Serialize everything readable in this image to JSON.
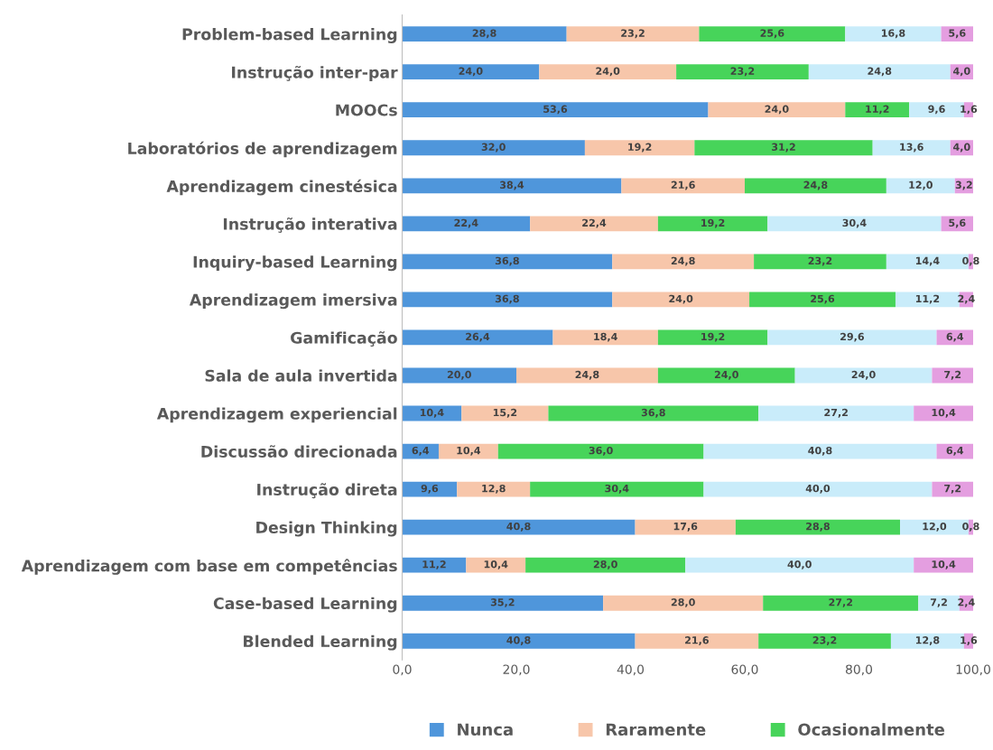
{
  "chart_data": {
    "type": "bar",
    "orientation": "horizontal",
    "stacked": true,
    "categories": [
      "Problem-based Learning",
      "Instrução inter-par",
      "MOOCs",
      "Laboratórios de aprendizagem",
      "Aprendizagem cinestésica",
      "Instrução interativa",
      "Inquiry-based Learning",
      "Aprendizagem imersiva",
      "Gamificação",
      "Sala de aula invertida",
      "Aprendizagem experiencial",
      "Discussão direcionada",
      "Instrução direta",
      "Design Thinking",
      "Aprendizagem com base em competências",
      "Case-based Learning",
      "Blended Learning"
    ],
    "series": [
      {
        "name": "Nunca",
        "color": "#4f96db",
        "values": [
          28.8,
          24.0,
          53.6,
          32.0,
          38.4,
          22.4,
          36.8,
          36.8,
          26.4,
          20.0,
          10.4,
          6.4,
          9.6,
          40.8,
          11.2,
          35.2,
          40.8
        ],
        "value_labels": [
          "28,8",
          "24,0",
          "53,6",
          "32,0",
          "38,4",
          "22,4",
          "36,8",
          "36,8",
          "26,4",
          "20,0",
          "10,4",
          "6,4",
          "9,6",
          "40,8",
          "11,2",
          "35,2",
          "40,8"
        ]
      },
      {
        "name": "Raramente",
        "color": "#f7c6aa",
        "values": [
          23.2,
          24.0,
          24.0,
          19.2,
          21.6,
          22.4,
          24.8,
          24.0,
          18.4,
          24.8,
          15.2,
          10.4,
          12.8,
          17.6,
          10.4,
          28.0,
          21.6
        ],
        "value_labels": [
          "23,2",
          "24,0",
          "24,0",
          "19,2",
          "21,6",
          "22,4",
          "24,8",
          "24,0",
          "18,4",
          "24,8",
          "15,2",
          "10,4",
          "12,8",
          "17,6",
          "10,4",
          "28,0",
          "21,6"
        ]
      },
      {
        "name": "Ocasionalmente",
        "color": "#47d45a",
        "values": [
          25.6,
          23.2,
          11.2,
          31.2,
          24.8,
          19.2,
          23.2,
          25.6,
          19.2,
          24.0,
          36.8,
          36.0,
          30.4,
          28.8,
          28.0,
          27.2,
          23.2
        ],
        "value_labels": [
          "25,6",
          "23,2",
          "11,2",
          "31,2",
          "24,8",
          "19,2",
          "23,2",
          "25,6",
          "19,2",
          "24,0",
          "36,8",
          "36,0",
          "30,4",
          "28,8",
          "28,0",
          "27,2",
          "23,2"
        ]
      },
      {
        "color": "#c9ecfa",
        "values": [
          16.8,
          24.8,
          9.6,
          13.6,
          12.0,
          30.4,
          14.4,
          11.2,
          29.6,
          24.0,
          27.2,
          40.8,
          40.0,
          12.0,
          40.0,
          7.2,
          12.8
        ],
        "value_labels": [
          "16,8",
          "24,8",
          "9,6",
          "13,6",
          "12,0",
          "30,4",
          "14,4",
          "11,2",
          "29,6",
          "24,0",
          "27,2",
          "40,8",
          "40,0",
          "12,0",
          "40,0",
          "7,2",
          "12,8"
        ]
      },
      {
        "color": "#e49ee0",
        "values": [
          5.6,
          4.0,
          1.6,
          4.0,
          3.2,
          5.6,
          0.8,
          2.4,
          6.4,
          7.2,
          10.4,
          6.4,
          7.2,
          0.8,
          10.4,
          2.4,
          1.6
        ],
        "value_labels": [
          "5,6",
          "4,0",
          "1,6",
          "4,0",
          "3,2",
          "5,6",
          "0,8",
          "2,4",
          "6,4",
          "7,2",
          "10,4",
          "6,4",
          "7,2",
          "0,8",
          "10,4",
          "2,4",
          "1,6"
        ]
      }
    ],
    "xlim": [
      0,
      100
    ],
    "xticks": [
      {
        "value": 0,
        "label": "0,0"
      },
      {
        "value": 20,
        "label": "20,0"
      },
      {
        "value": 40,
        "label": "40,0"
      },
      {
        "value": 60,
        "label": "60,0"
      },
      {
        "value": 80,
        "label": "80,0"
      },
      {
        "value": 100,
        "label": "100,0"
      }
    ],
    "grid": false,
    "legend": "bottom"
  }
}
